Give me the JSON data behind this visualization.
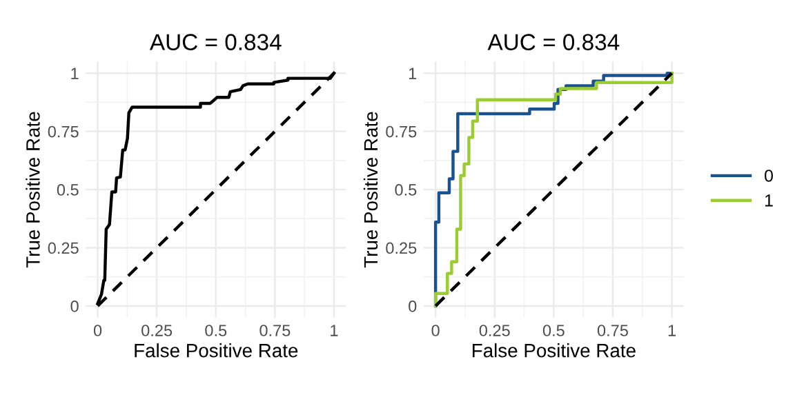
{
  "chart_data": [
    {
      "type": "line",
      "title": "AUC = 0.834",
      "xlabel": "False Positive Rate",
      "ylabel": "True Positive Rate",
      "xlim": [
        -0.05,
        1.05
      ],
      "ylim": [
        -0.05,
        1.05
      ],
      "xticks": [
        0,
        0.25,
        0.5,
        0.75,
        1
      ],
      "yticks": [
        0,
        0.25,
        0.5,
        0.75,
        1
      ],
      "grid": true,
      "legend": false,
      "series": [
        {
          "color": "#000000",
          "line_style": "solid",
          "x": [
            0,
            0.016,
            0.026,
            0.03,
            0.036,
            0.05,
            0.06,
            0.076,
            0.08,
            0.096,
            0.106,
            0.116,
            0.126,
            0.132,
            0.146,
            0.435,
            0.435,
            0.475,
            0.481,
            0.505,
            0.555,
            0.561,
            0.605,
            0.615,
            0.635,
            0.745,
            0.745,
            0.805,
            0.805,
            0.984,
            1
          ],
          "values": [
            0.01,
            0.05,
            0.11,
            0.11,
            0.33,
            0.35,
            0.49,
            0.49,
            0.55,
            0.554,
            0.67,
            0.67,
            0.72,
            0.83,
            0.854,
            0.854,
            0.87,
            0.87,
            0.874,
            0.896,
            0.896,
            0.92,
            0.93,
            0.946,
            0.954,
            0.954,
            0.96,
            0.97,
            0.978,
            0.978,
            1
          ]
        },
        {
          "color": "#000000",
          "line_style": "dashed",
          "x": [
            0,
            1
          ],
          "values": [
            0,
            1
          ]
        }
      ]
    },
    {
      "type": "line",
      "title": "AUC = 0.834",
      "xlabel": "False Positive Rate",
      "ylabel": "True Positive Rate",
      "xlim": [
        -0.05,
        1.05
      ],
      "ylim": [
        -0.05,
        1.05
      ],
      "xticks": [
        0,
        0.25,
        0.5,
        0.75,
        1
      ],
      "yticks": [
        0,
        0.25,
        0.5,
        0.75,
        1
      ],
      "grid": true,
      "legend": "right",
      "series": [
        {
          "name": "0",
          "color": "#1a5191",
          "line_style": "solid",
          "x": [
            0,
            0,
            0.014,
            0.014,
            0.058,
            0.058,
            0.074,
            0.074,
            0.094,
            0.094,
            0.398,
            0.398,
            0.502,
            0.502,
            0.518,
            0.518,
            0.552,
            0.552,
            0.667,
            0.667,
            0.711,
            0.711,
            0.98,
            0.98,
            1
          ],
          "values": [
            0,
            0.36,
            0.36,
            0.486,
            0.486,
            0.546,
            0.546,
            0.664,
            0.664,
            0.826,
            0.826,
            0.846,
            0.846,
            0.87,
            0.87,
            0.93,
            0.93,
            0.946,
            0.946,
            0.966,
            0.966,
            0.99,
            0.99,
            1,
            1
          ]
        },
        {
          "name": "1",
          "color": "#9acd32",
          "line_style": "solid",
          "x": [
            0,
            0,
            0.05,
            0.05,
            0.068,
            0.068,
            0.09,
            0.09,
            0.106,
            0.106,
            0.121,
            0.121,
            0.141,
            0.141,
            0.157,
            0.157,
            0.177,
            0.177,
            0.508,
            0.508,
            0.528,
            0.528,
            0.681,
            0.681,
            1,
            1
          ],
          "values": [
            0,
            0.054,
            0.054,
            0.14,
            0.14,
            0.19,
            0.19,
            0.33,
            0.33,
            0.56,
            0.56,
            0.61,
            0.61,
            0.724,
            0.724,
            0.794,
            0.794,
            0.886,
            0.886,
            0.91,
            0.91,
            0.934,
            0.934,
            0.96,
            0.96,
            1
          ]
        },
        {
          "color": "#000000",
          "line_style": "dashed",
          "x": [
            0,
            1
          ],
          "values": [
            0,
            1
          ]
        }
      ]
    }
  ]
}
